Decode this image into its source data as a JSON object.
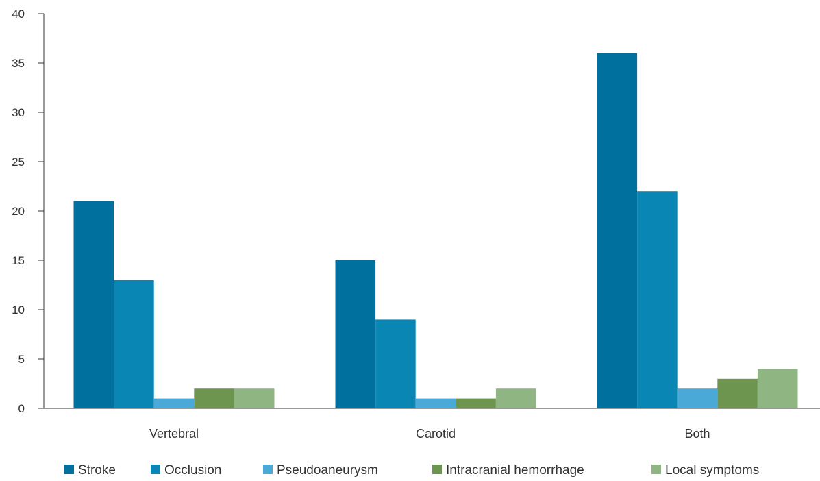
{
  "chart_data": {
    "type": "bar",
    "title": "",
    "xlabel": "",
    "ylabel": "",
    "categories": [
      "Vertebral",
      "Carotid",
      "Both"
    ],
    "series": [
      {
        "name": "Stroke",
        "values": [
          21,
          15,
          36
        ],
        "color": "#00709e"
      },
      {
        "name": "Occlusion",
        "values": [
          13,
          9,
          22
        ],
        "color": "#0a86b5"
      },
      {
        "name": "Pseudoaneurysm",
        "values": [
          1,
          1,
          2
        ],
        "color": "#4ba9d8"
      },
      {
        "name": "Intracranial hemorrhage",
        "values": [
          2,
          1,
          3
        ],
        "color": "#6e9550"
      },
      {
        "name": "Local symptoms",
        "values": [
          2,
          2,
          4
        ],
        "color": "#8fb582"
      }
    ],
    "ylim": [
      0,
      40
    ],
    "yticks": [
      0,
      5,
      10,
      15,
      20,
      25,
      30,
      35,
      40
    ],
    "grid": false,
    "legend_position": "bottom"
  }
}
